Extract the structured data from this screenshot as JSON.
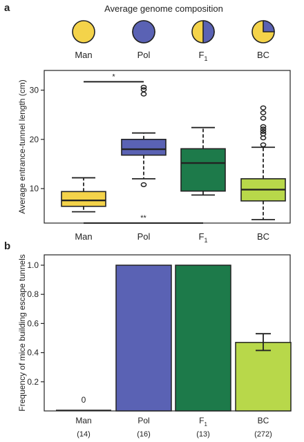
{
  "genome": {
    "title": "Average genome composition",
    "items": [
      {
        "label": "Man",
        "sub": "",
        "pol_fraction": 0.0
      },
      {
        "label": "Pol",
        "sub": "",
        "pol_fraction": 1.0
      },
      {
        "label": "F",
        "sub": "1",
        "pol_fraction": 0.5
      },
      {
        "label": "BC",
        "sub": "",
        "pol_fraction": 0.25
      }
    ]
  },
  "colors": {
    "man": "#f4d34a",
    "pol": "#5a62b4",
    "f1": "#1d7a4a",
    "bc": "#b8d84a",
    "line": "#222222",
    "grid_text": "#222222"
  },
  "chart_data": [
    {
      "panel": "a",
      "type": "box",
      "title": "",
      "xlabel": "",
      "ylabel": "Average entrance-tunnel length (cm)",
      "ylim": [
        3,
        34
      ],
      "yticks": [
        10,
        20,
        30
      ],
      "categories": [
        {
          "label": "Man",
          "sub": ""
        },
        {
          "label": "Pol",
          "sub": ""
        },
        {
          "label": "F",
          "sub": "1"
        },
        {
          "label": "BC",
          "sub": ""
        }
      ],
      "boxes": [
        {
          "whisker_low": 5.3,
          "q1": 6.4,
          "median": 7.6,
          "q3": 9.4,
          "whisker_high": 12.2,
          "outliers": []
        },
        {
          "whisker_low": 12.0,
          "q1": 16.8,
          "median": 18.0,
          "q3": 20.0,
          "whisker_high": 21.3,
          "outliers": [
            10.8,
            29.2,
            30.1,
            30.6
          ]
        },
        {
          "whisker_low": 8.7,
          "q1": 9.5,
          "median": 15.2,
          "q3": 18.1,
          "whisker_high": 22.4,
          "outliers": []
        },
        {
          "whisker_low": 3.7,
          "q1": 7.5,
          "median": 9.8,
          "q3": 12.0,
          "whisker_high": 18.4,
          "outliers": [
            18.9,
            20.3,
            21.1,
            21.6,
            22.1,
            22.6,
            24.3,
            25.4,
            26.4
          ]
        }
      ],
      "annotations": [
        {
          "text": "*",
          "from": 0,
          "to": 1,
          "y": 31.7
        },
        {
          "text": "**",
          "from": 0,
          "to": 2,
          "y": 3.0
        }
      ]
    },
    {
      "panel": "b",
      "type": "bar",
      "title": "",
      "xlabel": "",
      "ylabel": "Frequency of  mice building escape tunnels",
      "ylim": [
        0,
        1.0
      ],
      "yticks": [
        0.2,
        0.4,
        0.6,
        0.8,
        1.0
      ],
      "ytick_labels": [
        "0.2",
        "0.4",
        "0.6",
        "0.8",
        "1.0"
      ],
      "categories": [
        {
          "label": "Man",
          "sub": "",
          "n": "(14)"
        },
        {
          "label": "Pol",
          "sub": "",
          "n": "(16)"
        },
        {
          "label": "F",
          "sub": "1",
          "n": "(13)"
        },
        {
          "label": "BC",
          "sub": "",
          "n": "(272)"
        }
      ],
      "values": [
        0.0,
        1.0,
        1.0,
        0.47
      ],
      "errors": [
        null,
        null,
        null,
        [
          0.415,
          0.53
        ]
      ],
      "value_labels": [
        "0",
        "",
        "",
        ""
      ]
    }
  ],
  "panel_labels": [
    "a",
    "b"
  ]
}
